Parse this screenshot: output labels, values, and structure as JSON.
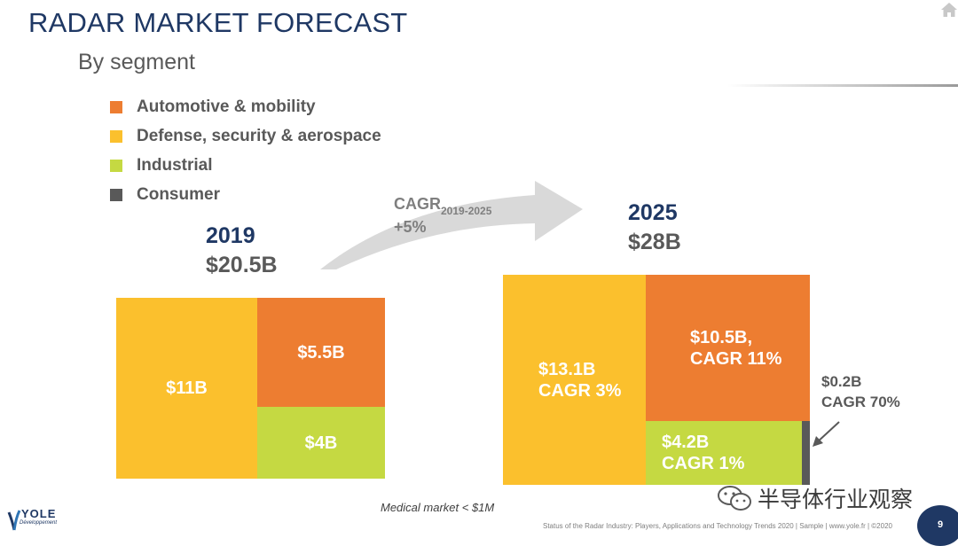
{
  "header": {
    "title": "RADAR MARKET FORECAST",
    "subtitle": "By segment"
  },
  "legend": [
    {
      "label": "Automotive & mobility",
      "color": "#ed7d31"
    },
    {
      "label": "Defense, security & aerospace",
      "color": "#fbc02d"
    },
    {
      "label": "Industrial",
      "color": "#c5d942"
    },
    {
      "label": "Consumer",
      "color": "#595959"
    }
  ],
  "growth": {
    "cagr_prefix": "CAGR",
    "cagr_period": "2019-2025",
    "cagr_value": "+5%"
  },
  "market_2019": {
    "year": "2019",
    "total": "$20.5B",
    "segments": [
      {
        "name": "Defense, security & aerospace",
        "label": "$11B",
        "value_busd": 11
      },
      {
        "name": "Automotive & mobility",
        "label": "$5.5B",
        "value_busd": 5.5
      },
      {
        "name": "Industrial",
        "label": "$4B",
        "value_busd": 4
      }
    ]
  },
  "market_2025": {
    "year": "2025",
    "total": "$28B",
    "segments": [
      {
        "name": "Defense, security & aerospace",
        "label": "$13.1B\nCAGR 3%",
        "value_busd": 13.1
      },
      {
        "name": "Automotive & mobility",
        "label": "$10.5B,\nCAGR 11%",
        "value_busd": 10.5
      },
      {
        "name": "Industrial",
        "label": "$4.2B\nCAGR 1%",
        "value_busd": 4.2
      },
      {
        "name": "Consumer",
        "label": "$0.2B\nCAGR 70%",
        "value_busd": 0.2
      }
    ]
  },
  "notes": {
    "medical": "Medical market < $1M",
    "footer": "Status of the Radar Industry: Players, Applications and Technology Trends 2020 | Sample | www.yole.fr | ©2020",
    "page_number": "9"
  },
  "branding": {
    "logo_name": "YOLE",
    "logo_sub": "Développement",
    "watermark": "半导体行业观察"
  },
  "icons": {
    "home": "home-icon",
    "growth_arrow": "curved-arrow-icon",
    "pointer_arrow": "arrow-icon",
    "wechat": "wechat-icon"
  }
}
